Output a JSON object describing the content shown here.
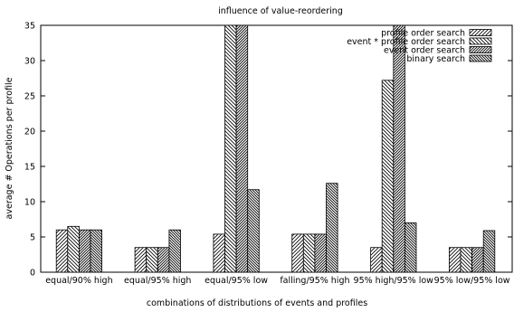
{
  "chart_data": {
    "type": "bar",
    "title": "influence of value-reordering",
    "xlabel": "combinations of distributions of events and profiles",
    "ylabel": "average # Operations per profile",
    "ylim": [
      0,
      35
    ],
    "yticks": [
      0,
      5,
      10,
      15,
      20,
      25,
      30,
      35
    ],
    "grid": false,
    "legend_position": "top-right",
    "categories": [
      "equal/90% high",
      "equal/95% high",
      "equal/95% low",
      "falling/95% high",
      "95% high/95% low",
      "95% low/95% low"
    ],
    "series": [
      {
        "name": "profile order search",
        "pattern": "diag-up",
        "values": [
          6.0,
          3.5,
          5.4,
          5.4,
          3.5,
          3.5
        ]
      },
      {
        "name": "event * profile order search",
        "pattern": "diag-down",
        "values": [
          6.5,
          3.5,
          35,
          5.4,
          27.2,
          3.5
        ]
      },
      {
        "name": "event order search",
        "pattern": "diag-up-dense",
        "values": [
          6.0,
          3.5,
          35,
          5.4,
          35,
          3.5
        ]
      },
      {
        "name": "binary search",
        "pattern": "diag-down-dense",
        "values": [
          6.0,
          6.0,
          11.7,
          12.6,
          7.0,
          5.9
        ]
      }
    ]
  }
}
